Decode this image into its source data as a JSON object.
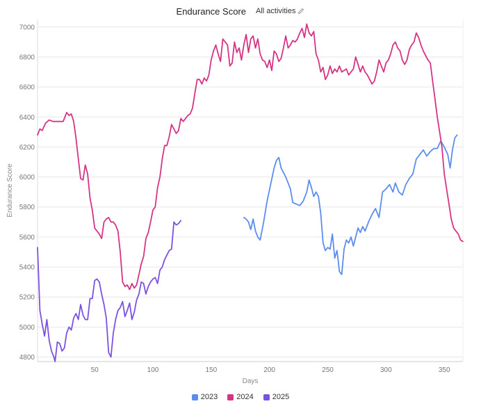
{
  "header": {
    "title": "Endurance Score",
    "filter_label": "All activities",
    "filter_icon": "pencil-icon"
  },
  "chart_data": {
    "type": "line",
    "title": "Endurance Score",
    "xlabel": "Days",
    "ylabel": "Endurance Score",
    "xlim": [
      1,
      366
    ],
    "ylim": [
      4770,
      7050
    ],
    "x_ticks": [
      50,
      100,
      150,
      200,
      250,
      300,
      350
    ],
    "y_ticks": [
      4800,
      5000,
      5200,
      5400,
      5600,
      5800,
      6000,
      6200,
      6400,
      6600,
      6800,
      7000
    ],
    "grid": "horizontal",
    "legend": "bottom-center",
    "series": [
      {
        "name": "2023",
        "color": "#5b8def",
        "points": [
          [
            178,
            5730
          ],
          [
            180,
            5720
          ],
          [
            182,
            5700
          ],
          [
            184,
            5650
          ],
          [
            186,
            5720
          ],
          [
            188,
            5640
          ],
          [
            190,
            5600
          ],
          [
            192,
            5580
          ],
          [
            195,
            5700
          ],
          [
            198,
            5840
          ],
          [
            201,
            5950
          ],
          [
            204,
            6060
          ],
          [
            206,
            6110
          ],
          [
            208,
            6130
          ],
          [
            210,
            6060
          ],
          [
            212,
            6030
          ],
          [
            214,
            6000
          ],
          [
            216,
            5960
          ],
          [
            218,
            5920
          ],
          [
            220,
            5830
          ],
          [
            223,
            5820
          ],
          [
            226,
            5810
          ],
          [
            229,
            5840
          ],
          [
            232,
            5900
          ],
          [
            234,
            5980
          ],
          [
            236,
            5930
          ],
          [
            238,
            5870
          ],
          [
            240,
            5900
          ],
          [
            242,
            5870
          ],
          [
            244,
            5760
          ],
          [
            246,
            5560
          ],
          [
            248,
            5510
          ],
          [
            250,
            5530
          ],
          [
            252,
            5520
          ],
          [
            254,
            5620
          ],
          [
            256,
            5460
          ],
          [
            258,
            5510
          ],
          [
            260,
            5370
          ],
          [
            262,
            5350
          ],
          [
            264,
            5520
          ],
          [
            266,
            5580
          ],
          [
            268,
            5560
          ],
          [
            270,
            5600
          ],
          [
            272,
            5540
          ],
          [
            274,
            5600
          ],
          [
            276,
            5660
          ],
          [
            278,
            5630
          ],
          [
            280,
            5670
          ],
          [
            282,
            5640
          ],
          [
            285,
            5700
          ],
          [
            288,
            5750
          ],
          [
            291,
            5790
          ],
          [
            294,
            5730
          ],
          [
            297,
            5900
          ],
          [
            300,
            5920
          ],
          [
            303,
            5950
          ],
          [
            306,
            5900
          ],
          [
            308,
            5960
          ],
          [
            311,
            5900
          ],
          [
            314,
            5880
          ],
          [
            317,
            5950
          ],
          [
            320,
            5990
          ],
          [
            323,
            6020
          ],
          [
            326,
            6120
          ],
          [
            329,
            6150
          ],
          [
            332,
            6180
          ],
          [
            335,
            6140
          ],
          [
            338,
            6170
          ],
          [
            341,
            6190
          ],
          [
            344,
            6190
          ],
          [
            347,
            6240
          ],
          [
            350,
            6200
          ],
          [
            353,
            6150
          ],
          [
            355,
            6060
          ],
          [
            357,
            6180
          ],
          [
            359,
            6260
          ],
          [
            361,
            6280
          ]
        ]
      },
      {
        "name": "2024",
        "color": "#d63384",
        "points": [
          [
            1,
            6280
          ],
          [
            3,
            6320
          ],
          [
            5,
            6310
          ],
          [
            8,
            6360
          ],
          [
            11,
            6380
          ],
          [
            14,
            6370
          ],
          [
            17,
            6370
          ],
          [
            20,
            6370
          ],
          [
            23,
            6370
          ],
          [
            26,
            6430
          ],
          [
            28,
            6410
          ],
          [
            30,
            6420
          ],
          [
            32,
            6370
          ],
          [
            34,
            6260
          ],
          [
            36,
            6120
          ],
          [
            38,
            5990
          ],
          [
            40,
            5980
          ],
          [
            42,
            6080
          ],
          [
            44,
            6020
          ],
          [
            46,
            5860
          ],
          [
            48,
            5780
          ],
          [
            50,
            5660
          ],
          [
            52,
            5640
          ],
          [
            54,
            5620
          ],
          [
            56,
            5590
          ],
          [
            58,
            5700
          ],
          [
            60,
            5720
          ],
          [
            62,
            5730
          ],
          [
            64,
            5700
          ],
          [
            66,
            5700
          ],
          [
            68,
            5680
          ],
          [
            70,
            5640
          ],
          [
            72,
            5500
          ],
          [
            74,
            5300
          ],
          [
            76,
            5270
          ],
          [
            78,
            5280
          ],
          [
            80,
            5250
          ],
          [
            82,
            5290
          ],
          [
            84,
            5260
          ],
          [
            86,
            5280
          ],
          [
            88,
            5350
          ],
          [
            90,
            5420
          ],
          [
            92,
            5470
          ],
          [
            94,
            5590
          ],
          [
            96,
            5630
          ],
          [
            98,
            5700
          ],
          [
            100,
            5780
          ],
          [
            102,
            5800
          ],
          [
            104,
            5930
          ],
          [
            106,
            6000
          ],
          [
            108,
            6120
          ],
          [
            110,
            6210
          ],
          [
            112,
            6210
          ],
          [
            114,
            6270
          ],
          [
            116,
            6350
          ],
          [
            118,
            6320
          ],
          [
            120,
            6290
          ],
          [
            122,
            6310
          ],
          [
            124,
            6390
          ],
          [
            126,
            6370
          ],
          [
            128,
            6390
          ],
          [
            130,
            6410
          ],
          [
            132,
            6420
          ],
          [
            134,
            6460
          ],
          [
            136,
            6560
          ],
          [
            138,
            6650
          ],
          [
            140,
            6650
          ],
          [
            142,
            6620
          ],
          [
            144,
            6660
          ],
          [
            146,
            6640
          ],
          [
            148,
            6680
          ],
          [
            150,
            6780
          ],
          [
            152,
            6840
          ],
          [
            154,
            6880
          ],
          [
            156,
            6820
          ],
          [
            158,
            6770
          ],
          [
            160,
            6920
          ],
          [
            162,
            6900
          ],
          [
            164,
            6880
          ],
          [
            166,
            6740
          ],
          [
            168,
            6760
          ],
          [
            170,
            6900
          ],
          [
            172,
            6830
          ],
          [
            174,
            6860
          ],
          [
            176,
            6780
          ],
          [
            178,
            6880
          ],
          [
            180,
            6950
          ],
          [
            182,
            6830
          ],
          [
            184,
            6920
          ],
          [
            186,
            6940
          ],
          [
            188,
            6860
          ],
          [
            190,
            6920
          ],
          [
            192,
            6820
          ],
          [
            194,
            6780
          ],
          [
            196,
            6770
          ],
          [
            198,
            6730
          ],
          [
            200,
            6780
          ],
          [
            202,
            6710
          ],
          [
            204,
            6840
          ],
          [
            206,
            6820
          ],
          [
            208,
            6770
          ],
          [
            210,
            6790
          ],
          [
            212,
            6860
          ],
          [
            214,
            6940
          ],
          [
            216,
            6860
          ],
          [
            218,
            6880
          ],
          [
            220,
            6910
          ],
          [
            222,
            6900
          ],
          [
            224,
            6920
          ],
          [
            226,
            6960
          ],
          [
            228,
            6990
          ],
          [
            230,
            6930
          ],
          [
            232,
            7020
          ],
          [
            234,
            6960
          ],
          [
            236,
            6940
          ],
          [
            238,
            6970
          ],
          [
            240,
            6820
          ],
          [
            242,
            6780
          ],
          [
            244,
            6700
          ],
          [
            246,
            6730
          ],
          [
            248,
            6650
          ],
          [
            250,
            6680
          ],
          [
            252,
            6740
          ],
          [
            254,
            6690
          ],
          [
            256,
            6720
          ],
          [
            258,
            6700
          ],
          [
            260,
            6740
          ],
          [
            262,
            6700
          ],
          [
            264,
            6710
          ],
          [
            266,
            6720
          ],
          [
            268,
            6680
          ],
          [
            270,
            6700
          ],
          [
            272,
            6720
          ],
          [
            274,
            6800
          ],
          [
            276,
            6750
          ],
          [
            278,
            6700
          ],
          [
            280,
            6740
          ],
          [
            282,
            6700
          ],
          [
            284,
            6680
          ],
          [
            286,
            6650
          ],
          [
            288,
            6620
          ],
          [
            290,
            6640
          ],
          [
            292,
            6700
          ],
          [
            294,
            6780
          ],
          [
            296,
            6740
          ],
          [
            298,
            6700
          ],
          [
            300,
            6760
          ],
          [
            302,
            6780
          ],
          [
            304,
            6820
          ],
          [
            306,
            6880
          ],
          [
            308,
            6900
          ],
          [
            310,
            6860
          ],
          [
            312,
            6840
          ],
          [
            314,
            6780
          ],
          [
            316,
            6750
          ],
          [
            318,
            6780
          ],
          [
            320,
            6850
          ],
          [
            322,
            6880
          ],
          [
            324,
            6900
          ],
          [
            326,
            6960
          ],
          [
            328,
            6930
          ],
          [
            330,
            6880
          ],
          [
            332,
            6840
          ],
          [
            334,
            6810
          ],
          [
            336,
            6780
          ],
          [
            338,
            6760
          ],
          [
            340,
            6640
          ],
          [
            342,
            6520
          ],
          [
            344,
            6400
          ],
          [
            346,
            6300
          ],
          [
            348,
            6200
          ],
          [
            350,
            6020
          ],
          [
            352,
            5920
          ],
          [
            354,
            5820
          ],
          [
            356,
            5720
          ],
          [
            358,
            5660
          ],
          [
            360,
            5640
          ],
          [
            362,
            5620
          ],
          [
            364,
            5580
          ],
          [
            366,
            5570
          ]
        ]
      },
      {
        "name": "2025",
        "color": "#7b52e0",
        "points": [
          [
            1,
            5530
          ],
          [
            3,
            5110
          ],
          [
            5,
            5020
          ],
          [
            7,
            4940
          ],
          [
            9,
            5050
          ],
          [
            11,
            4910
          ],
          [
            13,
            4840
          ],
          [
            15,
            4800
          ],
          [
            16,
            4770
          ],
          [
            18,
            4900
          ],
          [
            20,
            4890
          ],
          [
            22,
            4840
          ],
          [
            24,
            4860
          ],
          [
            26,
            4960
          ],
          [
            28,
            5000
          ],
          [
            30,
            4980
          ],
          [
            32,
            5060
          ],
          [
            34,
            5090
          ],
          [
            36,
            5050
          ],
          [
            38,
            5150
          ],
          [
            40,
            5080
          ],
          [
            42,
            5050
          ],
          [
            44,
            5050
          ],
          [
            46,
            5190
          ],
          [
            48,
            5190
          ],
          [
            50,
            5310
          ],
          [
            52,
            5320
          ],
          [
            54,
            5300
          ],
          [
            56,
            5220
          ],
          [
            58,
            5150
          ],
          [
            60,
            5060
          ],
          [
            62,
            4830
          ],
          [
            64,
            4800
          ],
          [
            66,
            4960
          ],
          [
            68,
            5050
          ],
          [
            70,
            5110
          ],
          [
            72,
            5130
          ],
          [
            74,
            5170
          ],
          [
            76,
            5070
          ],
          [
            78,
            5110
          ],
          [
            80,
            5160
          ],
          [
            82,
            5050
          ],
          [
            84,
            5100
          ],
          [
            86,
            5180
          ],
          [
            88,
            5220
          ],
          [
            90,
            5300
          ],
          [
            92,
            5290
          ],
          [
            94,
            5220
          ],
          [
            96,
            5270
          ],
          [
            98,
            5300
          ],
          [
            100,
            5320
          ],
          [
            102,
            5330
          ],
          [
            104,
            5290
          ],
          [
            106,
            5380
          ],
          [
            108,
            5400
          ],
          [
            110,
            5450
          ],
          [
            112,
            5480
          ],
          [
            114,
            5510
          ],
          [
            116,
            5520
          ],
          [
            118,
            5700
          ],
          [
            120,
            5680
          ],
          [
            122,
            5690
          ],
          [
            124,
            5710
          ]
        ]
      }
    ]
  }
}
